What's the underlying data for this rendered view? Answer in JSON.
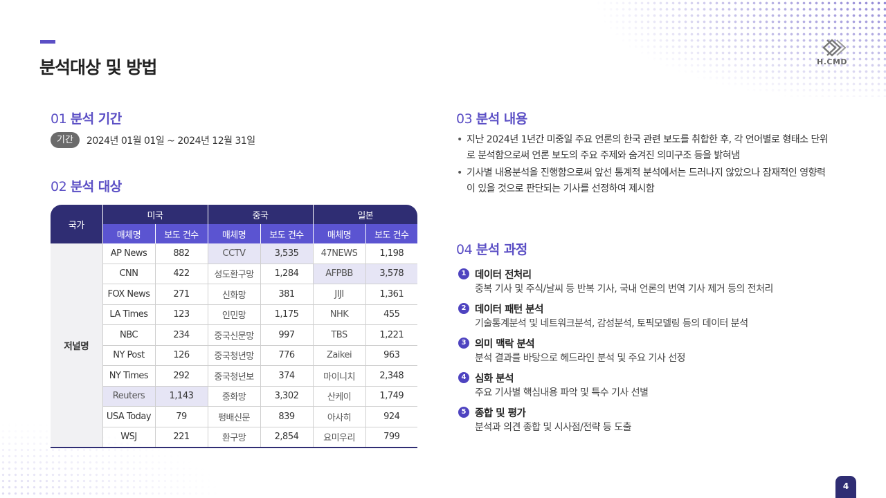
{
  "page": {
    "title": "분석대상 및 방법",
    "page_number": "4",
    "logo_text": "H.CMD"
  },
  "colors": {
    "accent": "#5b4fc5",
    "dark_navy": "#2f2d73",
    "header_purple": "#5b54d1",
    "highlight": "#e6e5f5"
  },
  "sec1": {
    "num": "01",
    "label": "분석 기간",
    "tag": "기간",
    "period": "2024년 01월 01일 ~ 2024년 12월 31일"
  },
  "sec2": {
    "num": "02",
    "label": "분석 대상",
    "table": {
      "country_header": "국가",
      "groups": [
        "미국",
        "중국",
        "일본"
      ],
      "sub_media": "매체명",
      "sub_count": "보도 건수",
      "row_header": "저널명",
      "rows": [
        [
          "AP News",
          "882",
          "CCTV",
          "3,535",
          "47NEWS",
          "1,198"
        ],
        [
          "CNN",
          "422",
          "성도환구망",
          "1,284",
          "AFPBB",
          "3,578"
        ],
        [
          "FOX News",
          "271",
          "신화망",
          "381",
          "JIJI",
          "1,361"
        ],
        [
          "LA Times",
          "123",
          "인민망",
          "1,175",
          "NHK",
          "455"
        ],
        [
          "NBC",
          "234",
          "중국신문망",
          "997",
          "TBS",
          "1,221"
        ],
        [
          "NY Post",
          "126",
          "중국청년망",
          "776",
          "Zaikei",
          "963"
        ],
        [
          "NY Times",
          "292",
          "중국청년보",
          "374",
          "마이니치",
          "2,348"
        ],
        [
          "Reuters",
          "1,143",
          "중화망",
          "3,302",
          "산케이",
          "1,749"
        ],
        [
          "USA Today",
          "79",
          "펑배신문",
          "839",
          "아사히",
          "924"
        ],
        [
          "WSJ",
          "221",
          "환구망",
          "2,854",
          "요미우리",
          "799"
        ]
      ]
    }
  },
  "sec3": {
    "num": "03",
    "label": "분석 내용",
    "bullets": [
      "지난 2024년 1년간 미중일 주요 언론의 한국 관련 보도를 취합한 후, 각 언어별로 형태소 단위로 분석함으로써 언론 보도의 주요 주제와 숨겨진 의미구조 등을 밝혀냄",
      "기사별 내용분석을 진행함으로써 앞선 통계적 분석에서는 드러나지 않았으나 잠재적인 영향력이 있을 것으로 판단되는 기사를 선정하여 제시함"
    ]
  },
  "sec4": {
    "num": "04",
    "label": "분석 과정",
    "steps": [
      {
        "n": "1",
        "title": "데이터 전처리",
        "desc": "중복 기사 및 주식/날씨 등 반복 기사, 국내 언론의 번역 기사 제거 등의 전처리"
      },
      {
        "n": "2",
        "title": "데이터 패턴 분석",
        "desc": "기술통계분석 및 네트워크분석, 감성분석, 토픽모델링 등의 데이터 분석"
      },
      {
        "n": "3",
        "title": "의미 맥락 분석",
        "desc": "분석 결과를 바탕으로 헤드라인 분석 및 주요 기사 선정"
      },
      {
        "n": "4",
        "title": "심화 분석",
        "desc": "주요 기사별 핵심내용 파악 및 특수 기사 선별"
      },
      {
        "n": "5",
        "title": "종합 및 평가",
        "desc": "분석과 의견 종합 및 시사점/전략 등 도출"
      }
    ]
  }
}
